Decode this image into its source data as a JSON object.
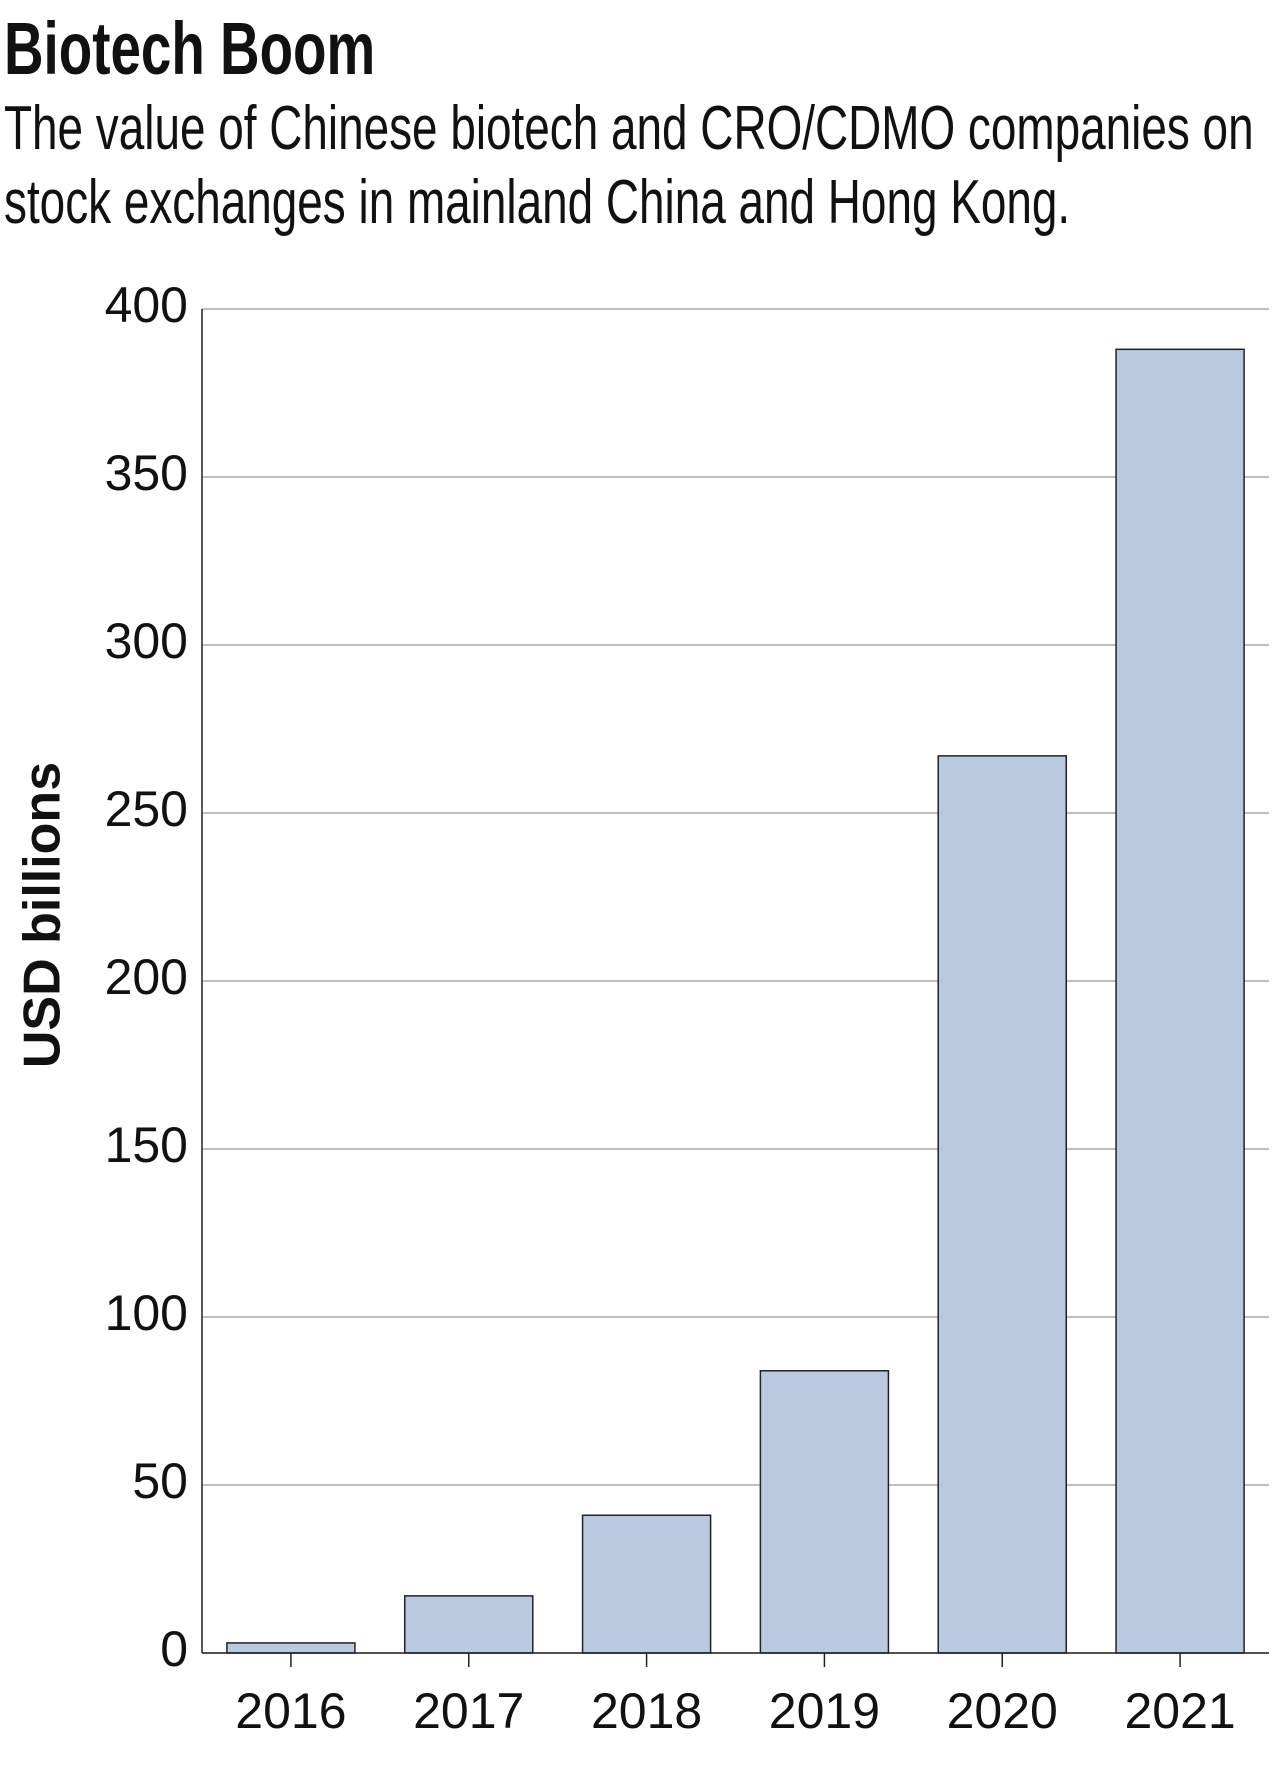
{
  "chart_data": {
    "type": "bar",
    "title": "Biotech Boom",
    "subtitle": "The value of Chinese biotech and CRO/CDMO companies on stock exchanges in mainland China and Hong Kong.",
    "y_label": "USD billions",
    "categories": [
      "2016",
      "2017",
      "2018",
      "2019",
      "2020",
      "2021"
    ],
    "values": [
      3,
      17,
      41,
      84,
      267,
      388
    ],
    "color": "#b8c9e0",
    "ylim": [
      0,
      400
    ],
    "yticks": [
      0,
      50,
      100,
      150,
      200,
      250,
      300,
      350,
      400
    ],
    "grid": true
  }
}
